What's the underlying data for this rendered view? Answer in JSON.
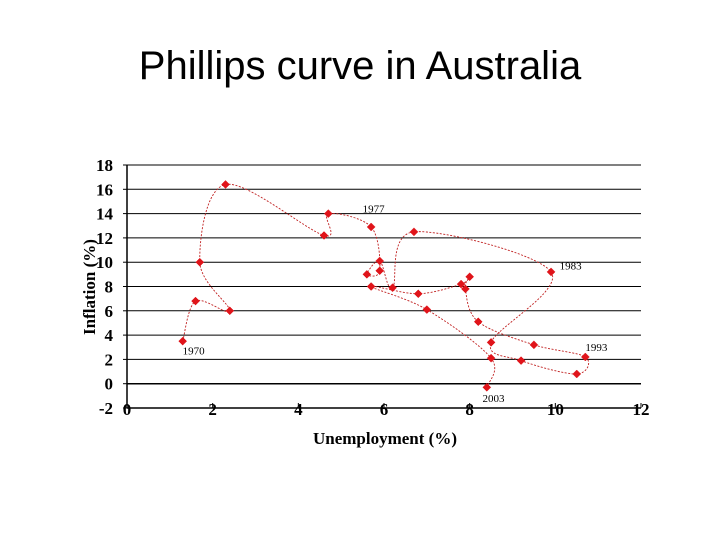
{
  "chart_data": {
    "type": "scatter",
    "title": "Phillips curve in Australia",
    "xlabel": "Unemployment (%)",
    "ylabel": "Inflation (%)",
    "xlim": [
      0,
      12
    ],
    "ylim": [
      -2,
      18
    ],
    "x_ticks": [
      "0",
      "2",
      "4",
      "6",
      "8",
      "10",
      "12"
    ],
    "y_ticks": [
      "-2",
      "0",
      "2",
      "4",
      "6",
      "8",
      "10",
      "12",
      "14",
      "16",
      "18"
    ],
    "grid": "horizontal",
    "legend": "none",
    "marker_color": "#e0141a",
    "line_color": "#c02020",
    "points": [
      {
        "x": 1.3,
        "y": 3.5
      },
      {
        "x": 1.6,
        "y": 6.8
      },
      {
        "x": 2.4,
        "y": 6.0
      },
      {
        "x": 1.7,
        "y": 10.0
      },
      {
        "x": 2.3,
        "y": 16.4
      },
      {
        "x": 4.6,
        "y": 12.2
      },
      {
        "x": 4.7,
        "y": 14.0
      },
      {
        "x": 5.7,
        "y": 12.9
      },
      {
        "x": 5.9,
        "y": 9.3
      },
      {
        "x": 5.6,
        "y": 9.0
      },
      {
        "x": 5.9,
        "y": 10.1
      },
      {
        "x": 6.2,
        "y": 7.9
      },
      {
        "x": 6.7,
        "y": 12.5
      },
      {
        "x": 9.9,
        "y": 9.2
      },
      {
        "x": 8.5,
        "y": 3.4
      },
      {
        "x": 9.2,
        "y": 1.9
      },
      {
        "x": 10.5,
        "y": 0.8
      },
      {
        "x": 10.7,
        "y": 2.2
      },
      {
        "x": 9.5,
        "y": 3.2
      },
      {
        "x": 8.2,
        "y": 5.1
      },
      {
        "x": 7.9,
        "y": 7.8
      },
      {
        "x": 8.0,
        "y": 8.8
      },
      {
        "x": 7.8,
        "y": 8.2
      },
      {
        "x": 6.8,
        "y": 7.4
      },
      {
        "x": 5.7,
        "y": 8.0
      },
      {
        "x": 7.0,
        "y": 6.1
      },
      {
        "x": 8.5,
        "y": 2.1
      },
      {
        "x": 8.4,
        "y": -0.3
      }
    ],
    "annotations": [
      {
        "text": "1970",
        "x": 1.3,
        "y": 2.4
      },
      {
        "text": "1977",
        "x": 5.5,
        "y": 14.1
      },
      {
        "text": "1983",
        "x": 10.1,
        "y": 9.4
      },
      {
        "text": "1993",
        "x": 10.7,
        "y": 2.7
      },
      {
        "text": "2003",
        "x": 8.3,
        "y": -1.5
      }
    ]
  }
}
